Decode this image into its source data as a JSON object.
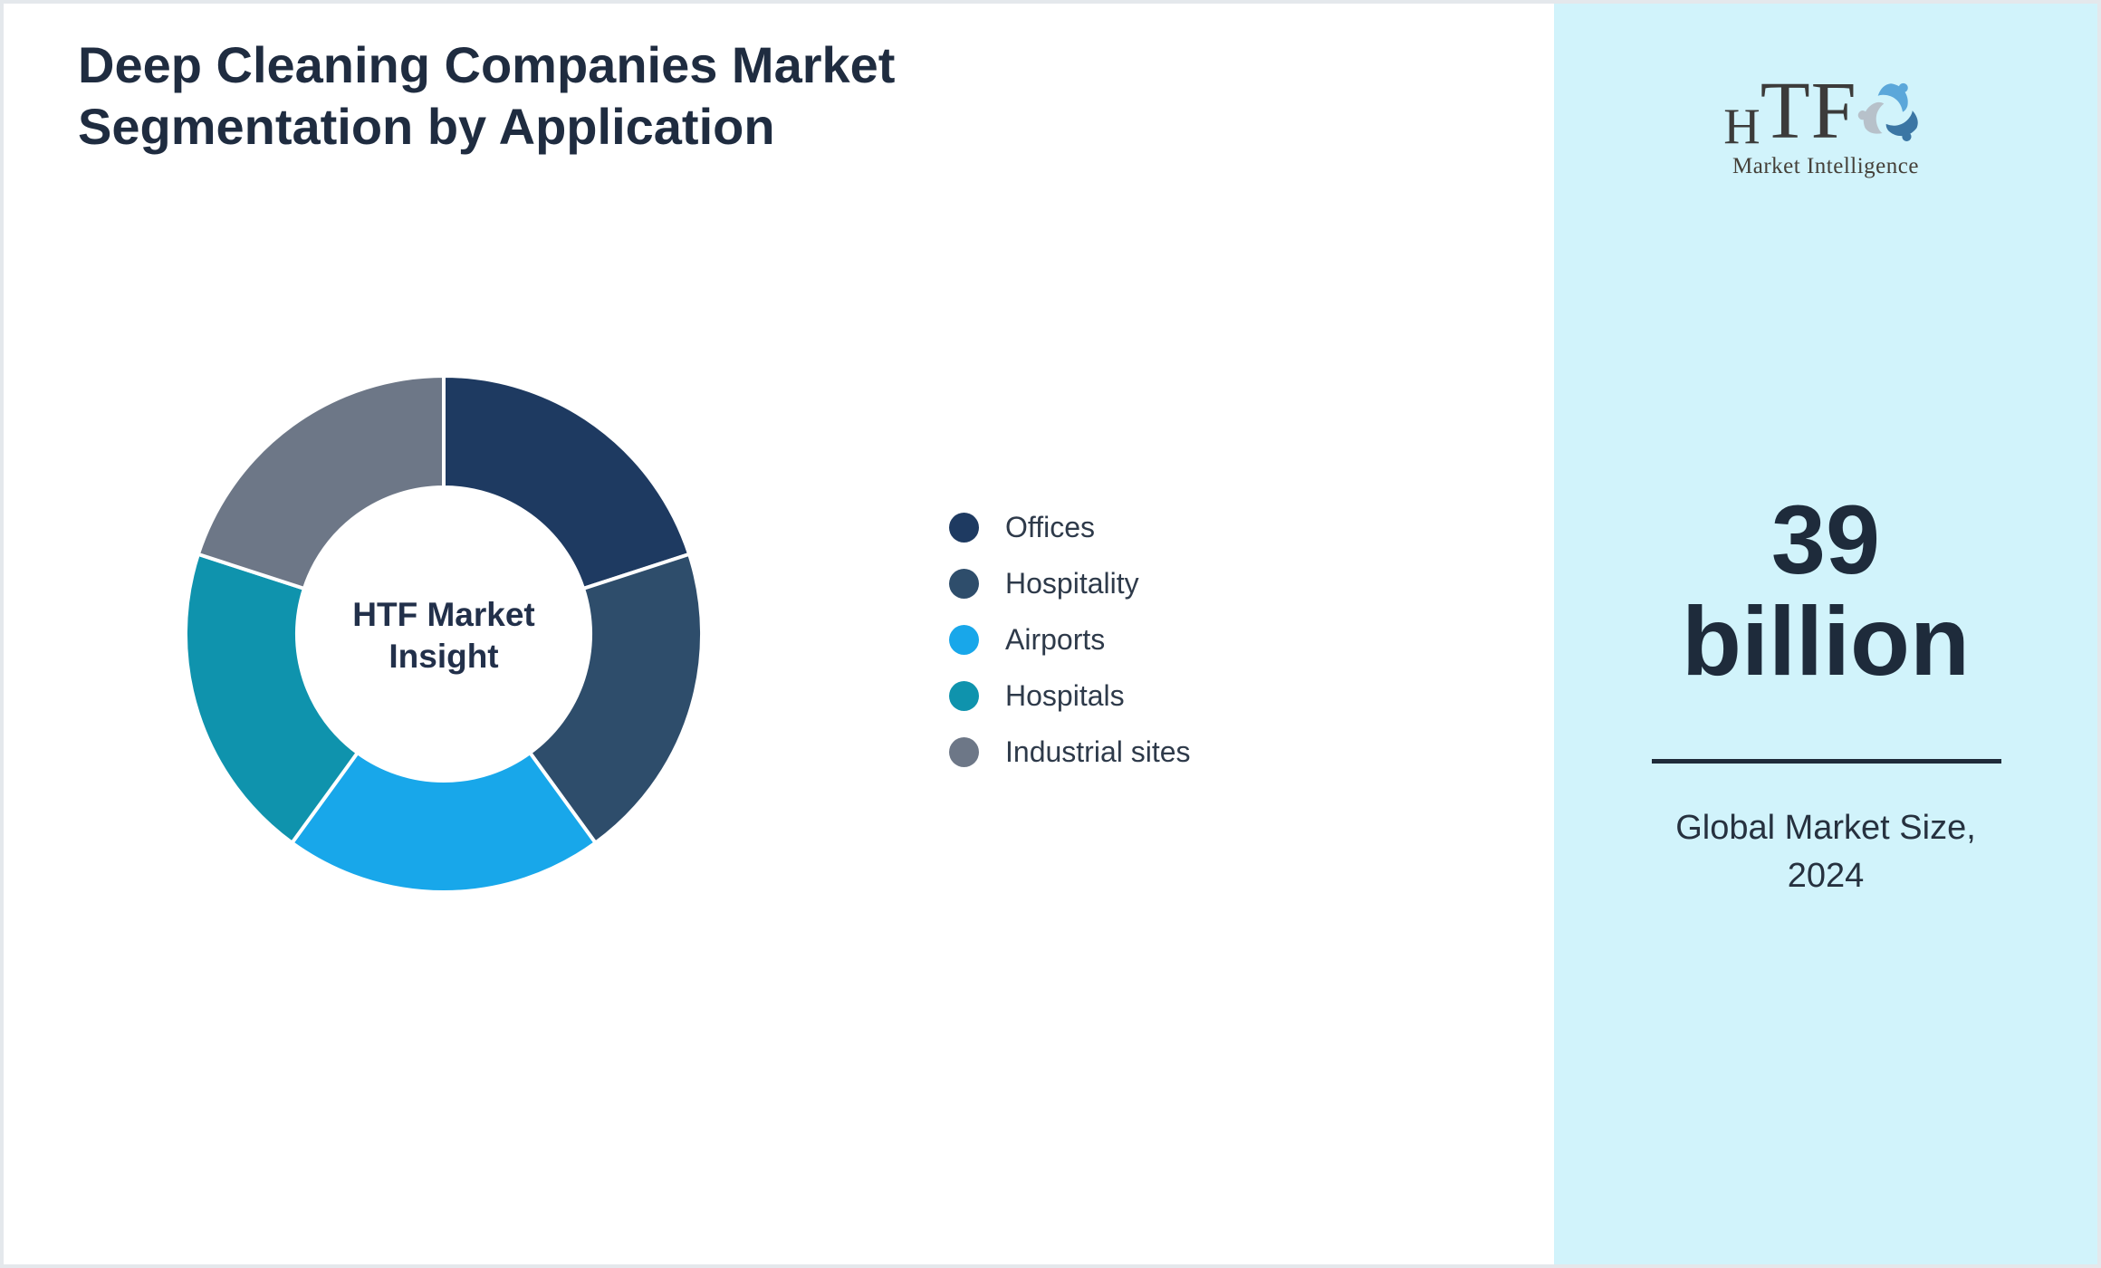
{
  "title": {
    "line1": "Deep Cleaning Companies Market",
    "line2": "Segmentation by Application"
  },
  "chart_data": {
    "type": "pie",
    "variant": "donut",
    "title": "Deep Cleaning Companies Market Segmentation by Application",
    "categories": [
      "Offices",
      "Hospitality",
      "Airports",
      "Hospitals",
      "Industrial sites"
    ],
    "values": [
      20,
      20,
      20,
      20,
      20
    ],
    "unit": "percent (equal segments, no data labels shown)",
    "colors": [
      "#1e3a61",
      "#2e4d6b",
      "#18a7ea",
      "#0f93ad",
      "#6d7787"
    ],
    "start_angle_deg": 0,
    "direction": "clockwise",
    "inner_radius_ratio": 0.57,
    "slice_gap_color": "#ffffff",
    "legend_position": "right",
    "center_label": {
      "line1": "HTF Market",
      "line2": "Insight"
    }
  },
  "sidebar": {
    "background_color": "#d1f3fb",
    "logo": {
      "text_small": "H",
      "text_large": "TF",
      "subtext": "Market Intelligence",
      "mark_icon": "three-figure-swirl",
      "mark_colors": [
        "#5ba7da",
        "#3b76a4",
        "#b7c1ca"
      ]
    },
    "market_size": {
      "value_line1": "39",
      "value_line2": "billion",
      "caption_line1": "Global Market Size,",
      "caption_line2": "2024"
    }
  },
  "theme": {
    "title_color": "#1f2c40",
    "text_dark": "#1e2b3b",
    "page_border": "#e4e8ec"
  }
}
